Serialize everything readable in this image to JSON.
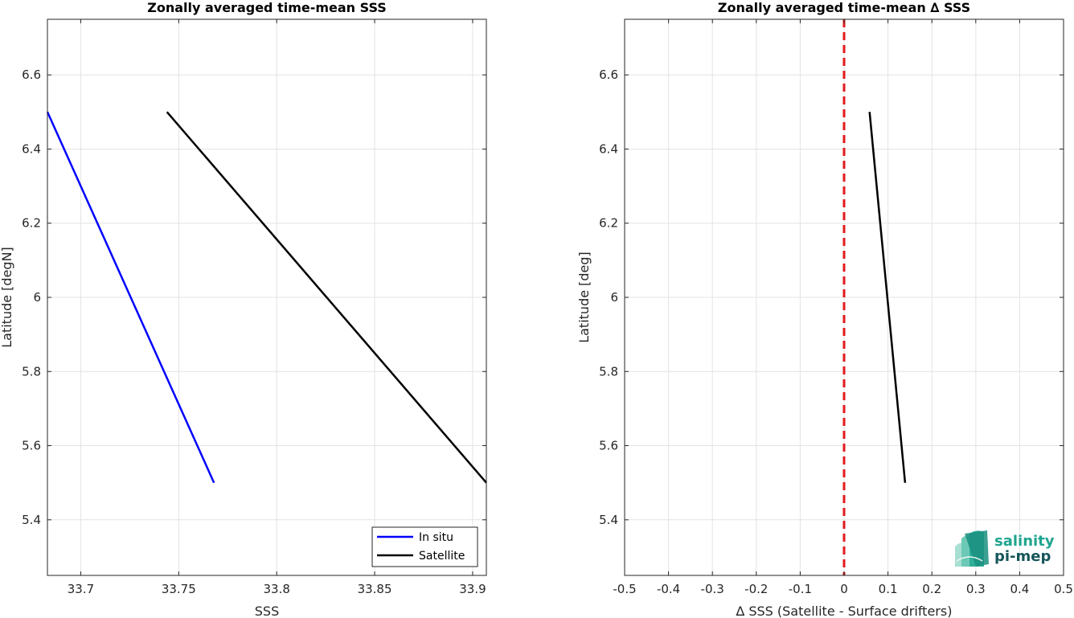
{
  "chart_data": [
    {
      "type": "line",
      "title": "Zonally averaged time-mean SSS",
      "xlabel": "SSS",
      "ylabel": "Latitude [degN]",
      "xlim": [
        33.683,
        33.907
      ],
      "ylim": [
        5.25,
        6.75
      ],
      "xticks": [
        33.7,
        33.75,
        33.8,
        33.85,
        33.9
      ],
      "xtick_labels": [
        "33.7",
        "33.75",
        "33.8",
        "33.85",
        "33.9"
      ],
      "yticks": [
        5.4,
        5.6,
        5.8,
        6.0,
        6.2,
        6.4,
        6.6
      ],
      "ytick_labels": [
        "5.4",
        "5.6",
        "5.8",
        "6",
        "6.2",
        "6.4",
        "6.6"
      ],
      "grid": true,
      "legend_position": "bottom-right",
      "series": [
        {
          "name": "In situ",
          "color": "#0000ff",
          "x": [
            33.683,
            33.768
          ],
          "y": [
            6.5,
            5.5
          ]
        },
        {
          "name": "Satellite",
          "color": "#000000",
          "x": [
            33.744,
            33.907
          ],
          "y": [
            6.5,
            5.5
          ]
        }
      ]
    },
    {
      "type": "line",
      "title": "Zonally averaged time-mean ∆ SSS",
      "xlabel": "∆ SSS (Satellite - Surface drifters)",
      "ylabel": "Latitude [deg]",
      "xlim": [
        -0.5,
        0.5
      ],
      "ylim": [
        5.25,
        6.75
      ],
      "xticks": [
        -0.5,
        -0.4,
        -0.3,
        -0.2,
        -0.1,
        0,
        0.1,
        0.2,
        0.3,
        0.4,
        0.5
      ],
      "xtick_labels": [
        "-0.5",
        "-0.4",
        "-0.3",
        "-0.2",
        "-0.1",
        "0",
        "0.1",
        "0.2",
        "0.3",
        "0.4",
        "0.5"
      ],
      "yticks": [
        5.4,
        5.6,
        5.8,
        6.0,
        6.2,
        6.4,
        6.6
      ],
      "ytick_labels": [
        "5.4",
        "5.6",
        "5.8",
        "6",
        "6.2",
        "6.4",
        "6.6"
      ],
      "grid": true,
      "reference_line": {
        "x": 0,
        "color": "#e31a1c",
        "style": "dashed"
      },
      "series": [
        {
          "color": "#000000",
          "x": [
            0.058,
            0.139
          ],
          "y": [
            6.5,
            5.5
          ]
        }
      ]
    }
  ],
  "logo": {
    "line1": "salinity",
    "line2": "pi-mep",
    "color1": "#1fa58f",
    "color2": "#16565a"
  }
}
